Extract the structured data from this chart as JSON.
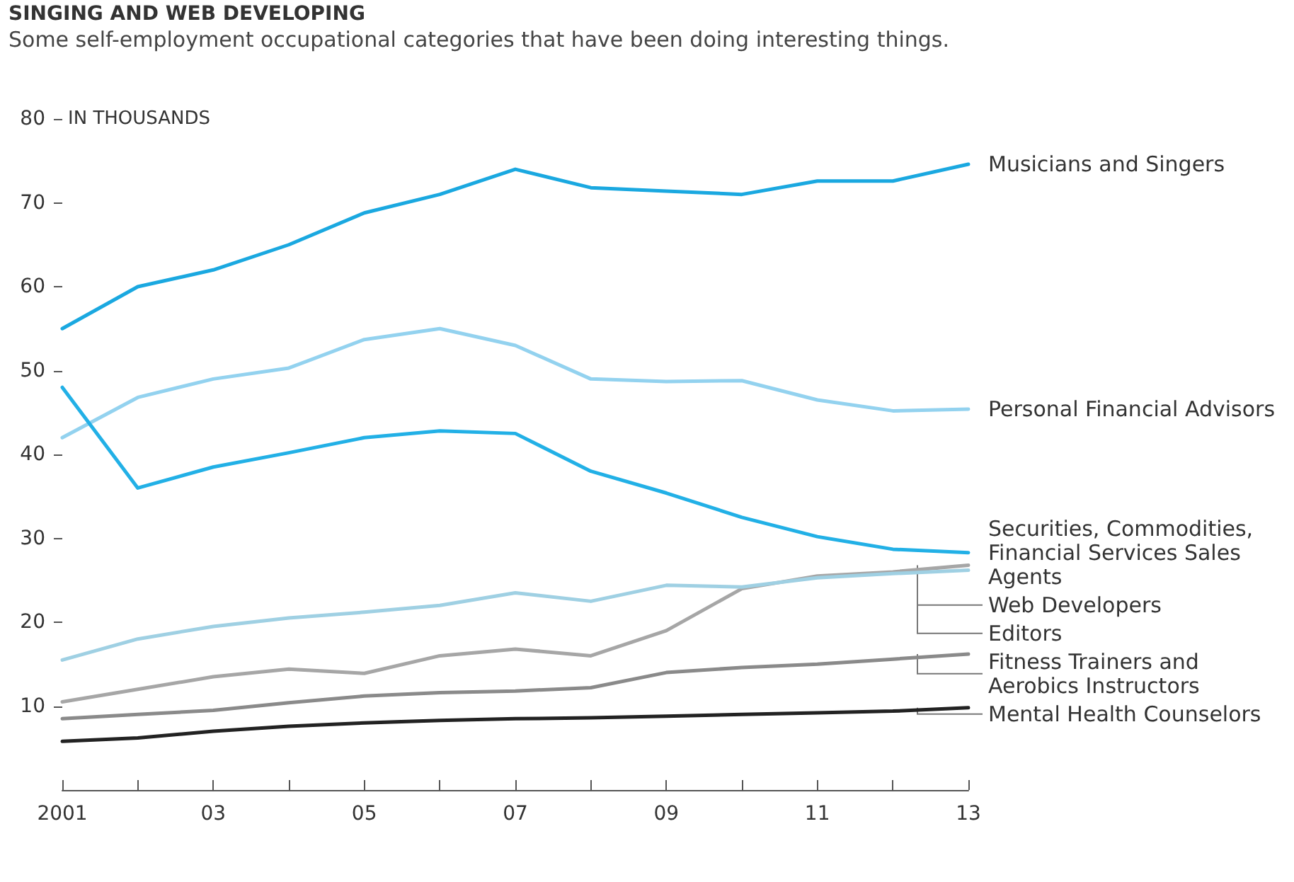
{
  "chart_data": {
    "type": "line",
    "title": "SINGING AND WEB DEVELOPING",
    "subtitle": "Some self-employment occupational categories that have been doing interesting things.",
    "ylabel": "IN THOUSANDS",
    "x": [
      2001,
      2002,
      2003,
      2004,
      2005,
      2006,
      2007,
      2008,
      2009,
      2010,
      2011,
      2012,
      2013
    ],
    "xlim": [
      2001,
      2013
    ],
    "xticks": [
      {
        "value": 2001,
        "label": "2001"
      },
      {
        "value": 2002,
        "label": null
      },
      {
        "value": 2003,
        "label": "03"
      },
      {
        "value": 2004,
        "label": null
      },
      {
        "value": 2005,
        "label": "05"
      },
      {
        "value": 2006,
        "label": null
      },
      {
        "value": 2007,
        "label": "07"
      },
      {
        "value": 2008,
        "label": null
      },
      {
        "value": 2009,
        "label": "09"
      },
      {
        "value": 2010,
        "label": null
      },
      {
        "value": 2011,
        "label": "11"
      },
      {
        "value": 2012,
        "label": null
      },
      {
        "value": 2013,
        "label": "13"
      }
    ],
    "ylim": [
      0,
      80
    ],
    "yticks": [
      10,
      20,
      30,
      40,
      50,
      60,
      70,
      80
    ],
    "grid": false,
    "legend": false,
    "marker": "none",
    "line_style": "solid",
    "series": [
      {
        "name": "Musicians and Singers",
        "color": "#1aa8e0",
        "values": [
          55,
          60,
          62,
          65,
          68.8,
          71,
          74,
          71.8,
          71.4,
          71,
          72.6,
          72.6,
          74.6
        ]
      },
      {
        "name": "Personal Financial Advisors",
        "color": "#93d2ef",
        "values": [
          42,
          46.8,
          49,
          50.3,
          53.7,
          55,
          53,
          49,
          48.7,
          48.8,
          46.5,
          45.2,
          45.4
        ]
      },
      {
        "name": "Securities, Commodities, Financial Services Sales Agents",
        "color": "#22b0e6",
        "values": [
          48,
          36,
          38.5,
          40.2,
          42,
          42.8,
          42.5,
          38,
          35.4,
          32.5,
          30.2,
          28.7,
          28.3
        ]
      },
      {
        "name": "Web Developers",
        "color": "#a6a6a6",
        "values": [
          10.5,
          12,
          13.5,
          14.4,
          13.9,
          16,
          16.8,
          16,
          19,
          24,
          25.5,
          26,
          26.8
        ]
      },
      {
        "name": "Editors",
        "color": "#9fd0e3",
        "values": [
          15.5,
          18,
          19.5,
          20.5,
          21.2,
          22,
          23.5,
          22.5,
          24.4,
          24.2,
          25.3,
          25.8,
          26.2
        ]
      },
      {
        "name": "Fitness Trainers and Aerobics Instructors",
        "color": "#8a8a8a",
        "values": [
          8.5,
          9,
          9.5,
          10.4,
          11.2,
          11.6,
          11.8,
          12.2,
          14,
          14.6,
          15,
          15.6,
          16.2
        ]
      },
      {
        "name": "Mental Health Counselors",
        "color": "#222222",
        "values": [
          5.8,
          6.2,
          7,
          7.6,
          8,
          8.3,
          8.5,
          8.6,
          8.8,
          9,
          9.2,
          9.4,
          9.8
        ]
      }
    ]
  }
}
